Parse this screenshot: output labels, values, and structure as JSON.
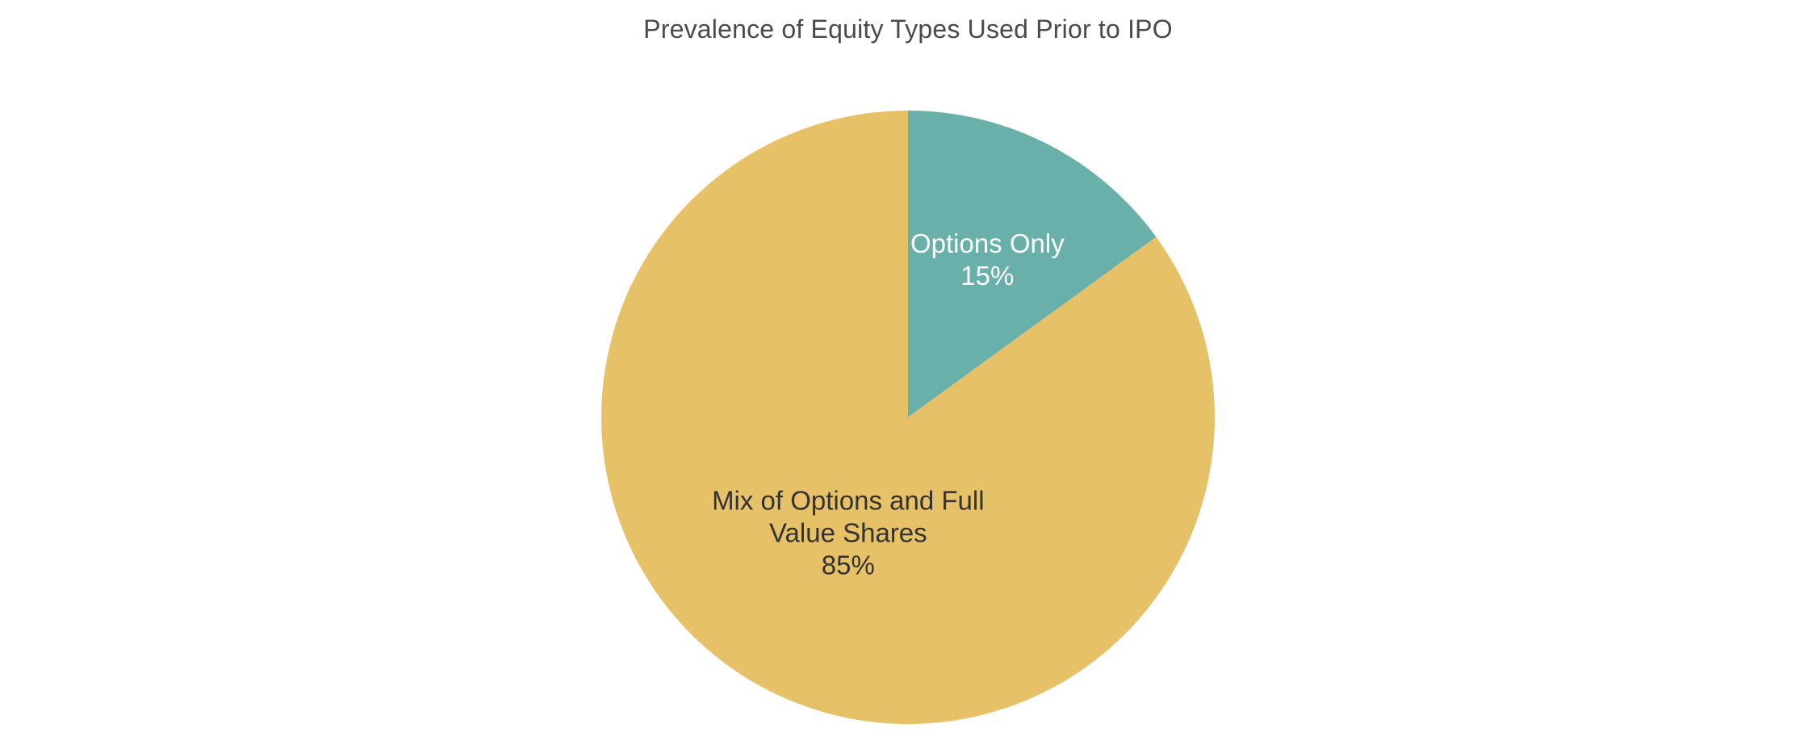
{
  "chart_data": {
    "type": "pie",
    "title": "Prevalence of Equity Types Used Prior to IPO",
    "slices": [
      {
        "label_lines": [
          "Options Only"
        ],
        "value": 15,
        "value_label": "15%",
        "color": "#69b0ab",
        "label_color": "#ffffff"
      },
      {
        "label_lines": [
          "Mix of Options and Full",
          "Value Shares"
        ],
        "value": 85,
        "value_label": "85%",
        "color": "#e6c168",
        "label_color": "#333333"
      }
    ],
    "start_angle": "12 o'clock",
    "direction": "clockwise",
    "legend": "none"
  }
}
